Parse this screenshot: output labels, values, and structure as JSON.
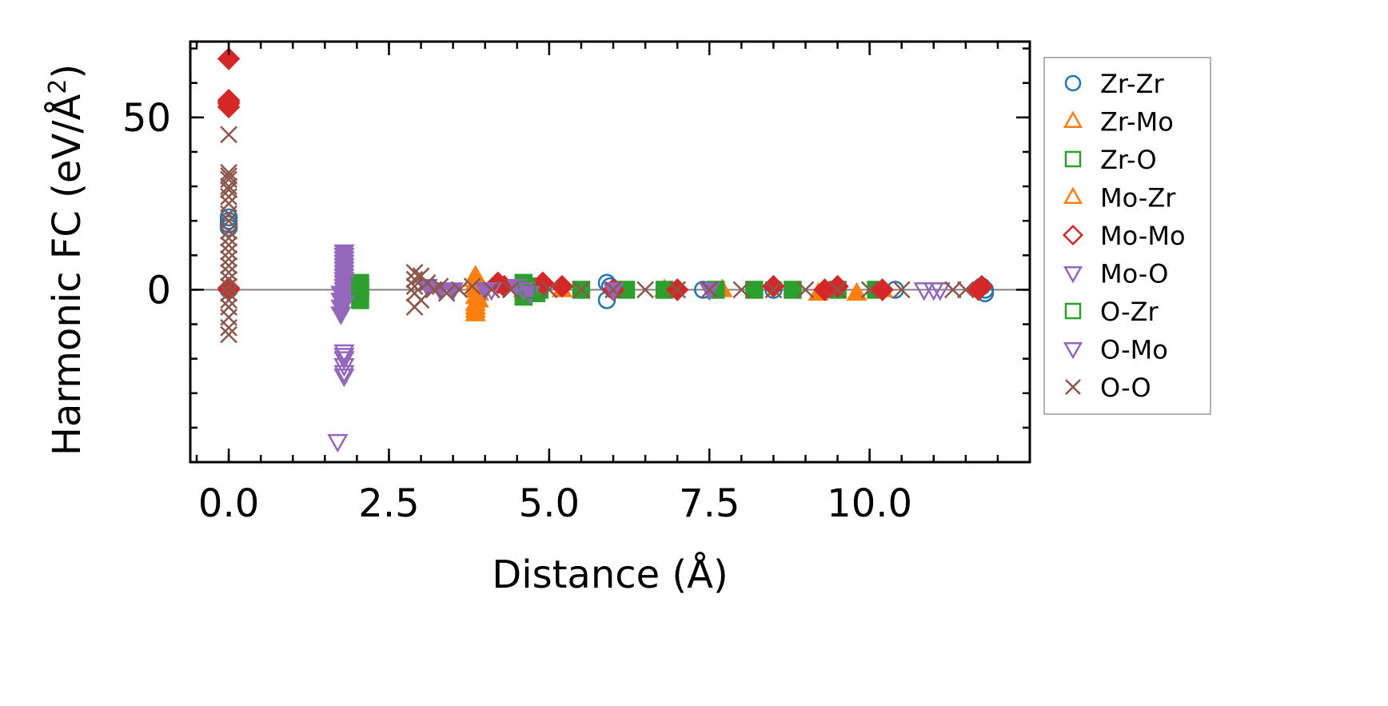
{
  "chart_data": {
    "type": "scatter",
    "title": "",
    "xlabel": "Distance (Å)",
    "ylabel_main": "Harmonic FC (eV/Å",
    "ylabel_sup": "2",
    "ylabel_close": ")",
    "xlim": [
      -0.6,
      12.5
    ],
    "ylim": [
      -50,
      72
    ],
    "x_major_ticks": [
      0.0,
      2.5,
      5.0,
      7.5,
      10.0
    ],
    "x_tick_labels": [
      "0.0",
      "2.5",
      "5.0",
      "7.5",
      "10.0"
    ],
    "x_minor_step": 0.5,
    "y_major_ticks": [
      0,
      50
    ],
    "y_tick_labels": [
      "0",
      "50"
    ],
    "y_minor_step": 10,
    "reference_line_y": 0,
    "legend_position": "right-outside-top",
    "series": [
      {
        "name": "Zr-Zr",
        "marker": "circle",
        "filled": false,
        "color": "#1f77b4",
        "x": [
          0.0,
          0.0,
          0.0,
          0.0,
          0.0,
          5.9,
          5.9,
          5.95,
          6.0,
          7.4,
          8.5,
          10.4,
          11.75,
          11.8,
          11.8
        ],
        "y": [
          21,
          20,
          19,
          18,
          0,
          2,
          -3,
          1,
          0,
          0,
          0,
          0,
          1,
          -1,
          0
        ]
      },
      {
        "name": "Zr-Mo",
        "marker": "triangle-up",
        "filled": true,
        "color": "#ff7f0e",
        "x": [
          3.85,
          3.85,
          3.85,
          3.85,
          3.85,
          3.85,
          3.85,
          3.9,
          3.9,
          3.9,
          4.6,
          5.2,
          6.8,
          7.7,
          9.2,
          9.8,
          10.2
        ],
        "y": [
          4,
          2,
          0,
          -2,
          -4,
          -6,
          -7,
          1,
          -1,
          -3,
          0,
          0,
          0,
          0,
          -1,
          -1,
          0
        ]
      },
      {
        "name": "Zr-O",
        "marker": "square",
        "filled": true,
        "color": "#2ca02c",
        "x": [
          2.05,
          2.05,
          2.05,
          2.05,
          4.6,
          4.6,
          4.6,
          4.7,
          4.8,
          4.85,
          5.5,
          6.2,
          6.8,
          7.6,
          8.2,
          8.8,
          9.5,
          10.1
        ],
        "y": [
          2,
          0,
          -1,
          -3,
          2,
          0,
          -2,
          1,
          -1,
          0,
          0,
          0,
          0,
          0,
          0,
          0,
          0,
          0
        ]
      },
      {
        "name": "Mo-Zr",
        "marker": "triangle-up",
        "filled": false,
        "color": "#ff7f0e",
        "x": [
          3.85,
          3.88,
          3.82
        ],
        "y": [
          -5,
          0,
          3
        ]
      },
      {
        "name": "Mo-Mo",
        "marker": "diamond",
        "filled": true,
        "color": "#d62728",
        "x": [
          0.0,
          0.0,
          0.0,
          0.0,
          0.0,
          0.0,
          0.0,
          4.2,
          4.3,
          4.9,
          5.2,
          6.0,
          7.0,
          8.5,
          9.3,
          9.5,
          10.2,
          11.7,
          11.75
        ],
        "y": [
          67,
          55,
          54.5,
          54,
          53,
          0,
          0.5,
          2,
          1,
          2,
          1,
          0,
          0,
          1,
          0,
          1,
          0,
          0,
          1
        ]
      },
      {
        "name": "Mo-O",
        "marker": "triangle-down",
        "filled": true,
        "color": "#9467bd",
        "x": [
          1.8,
          1.8,
          1.8,
          1.8,
          1.8,
          1.8,
          1.8,
          1.8,
          1.8,
          1.8,
          1.8,
          1.8,
          1.8,
          1.8,
          1.75,
          1.75,
          1.75,
          1.75,
          3.1,
          3.3,
          3.5,
          4.0,
          4.5,
          4.7,
          6.0,
          7.5
        ],
        "y": [
          11,
          10,
          9,
          8,
          7,
          6,
          5,
          4,
          3,
          2,
          1,
          0,
          -2,
          -4,
          -1,
          -3,
          -5,
          -7,
          1,
          0,
          0,
          0,
          1,
          -1,
          0,
          0
        ]
      },
      {
        "name": "O-Zr",
        "marker": "square",
        "filled": false,
        "color": "#2ca02c",
        "x": [
          2.05,
          4.65
        ],
        "y": [
          1,
          0
        ]
      },
      {
        "name": "O-Mo",
        "marker": "triangle-down",
        "filled": false,
        "color": "#9467bd",
        "x": [
          1.8,
          1.8,
          1.8,
          1.8,
          1.8,
          1.8,
          1.7,
          4.1,
          4.6,
          10.85,
          11.0,
          11.1
        ],
        "y": [
          -18,
          -19,
          -20,
          -22,
          -24,
          -25,
          -44,
          0,
          0,
          0,
          0,
          0
        ]
      },
      {
        "name": "O-O",
        "marker": "x",
        "filled": false,
        "color": "#8c564b",
        "x": [
          0.0,
          0.0,
          0.0,
          0.0,
          0.0,
          0.0,
          0.0,
          0.0,
          0.0,
          0.0,
          0.0,
          0.0,
          0.0,
          0.0,
          0.0,
          0.0,
          0.0,
          0.0,
          0.0,
          0.0,
          0.0,
          0.0,
          0.0,
          0.0,
          0.0,
          2.9,
          2.9,
          2.9,
          2.9,
          2.9,
          3.0,
          3.0,
          3.1,
          3.2,
          3.3,
          3.4,
          3.6,
          3.8,
          4.1,
          4.4,
          5.0,
          5.5,
          6.0,
          6.5,
          7.0,
          7.5,
          8.0,
          8.5,
          9.0,
          9.5,
          10.0,
          10.5,
          11.3,
          11.5
        ],
        "y": [
          45,
          34,
          33,
          32,
          30,
          29,
          27,
          25,
          22,
          20,
          17,
          15,
          13,
          11,
          9,
          7,
          5,
          3,
          1,
          -1,
          -3,
          -5,
          -8,
          -11,
          -13,
          5,
          3,
          1,
          -1,
          -5,
          4,
          -3,
          2,
          0,
          1,
          -1,
          0,
          1,
          0,
          0,
          0,
          0,
          0,
          0,
          0,
          0,
          0,
          0,
          0,
          0,
          0,
          0,
          0,
          0
        ]
      }
    ]
  }
}
